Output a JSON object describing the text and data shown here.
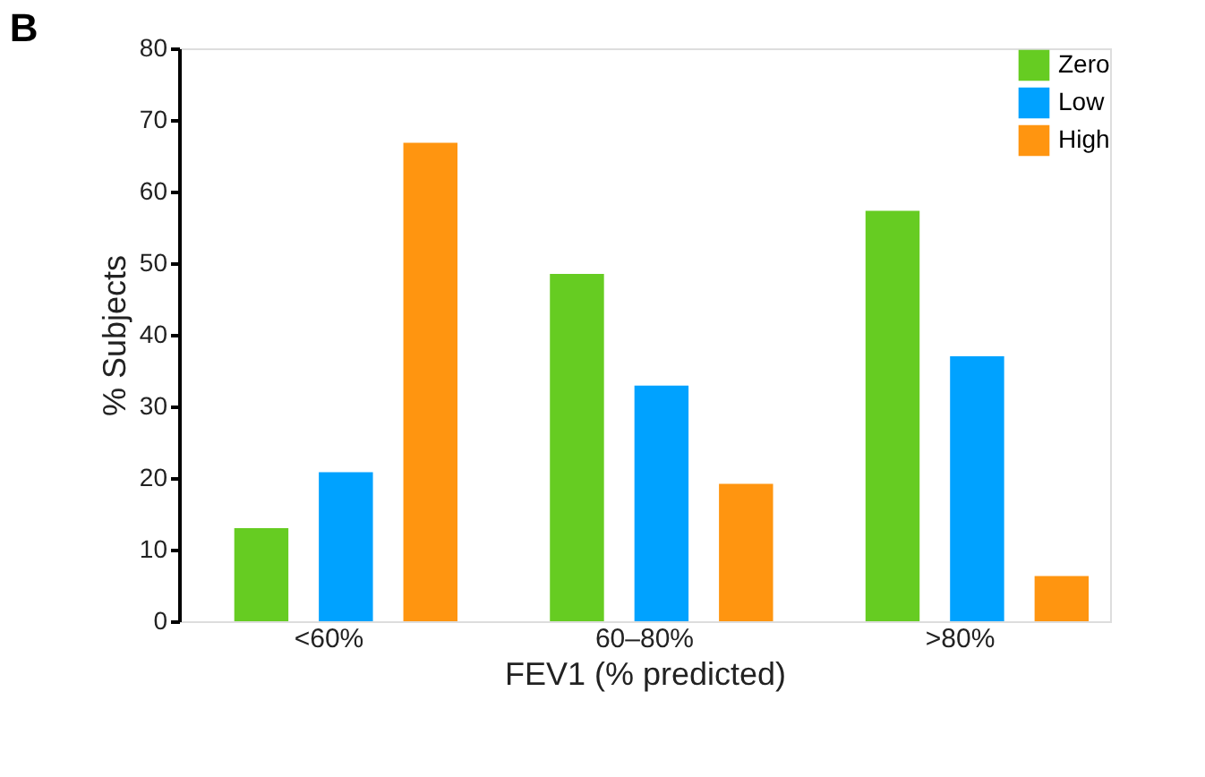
{
  "chart_data": {
    "type": "bar",
    "title": "B",
    "xlabel": "FEV1 (% predicted)",
    "ylabel": "% Subjects",
    "categories": [
      "<60%",
      "60–80%",
      ">80%"
    ],
    "series": [
      {
        "name": "Zero",
        "color": "#66cc22",
        "values": [
          13.0,
          48.5,
          57.3
        ]
      },
      {
        "name": "Low",
        "color": "#00a2ff",
        "values": [
          20.8,
          32.9,
          37.0
        ]
      },
      {
        "name": "High",
        "color": "#ff9510",
        "values": [
          66.8,
          19.2,
          6.3
        ]
      }
    ],
    "ylim": [
      0,
      80
    ],
    "yticks": [
      0,
      10,
      20,
      30,
      40,
      50,
      60,
      70,
      80
    ],
    "grid": false,
    "legend": "top right"
  }
}
